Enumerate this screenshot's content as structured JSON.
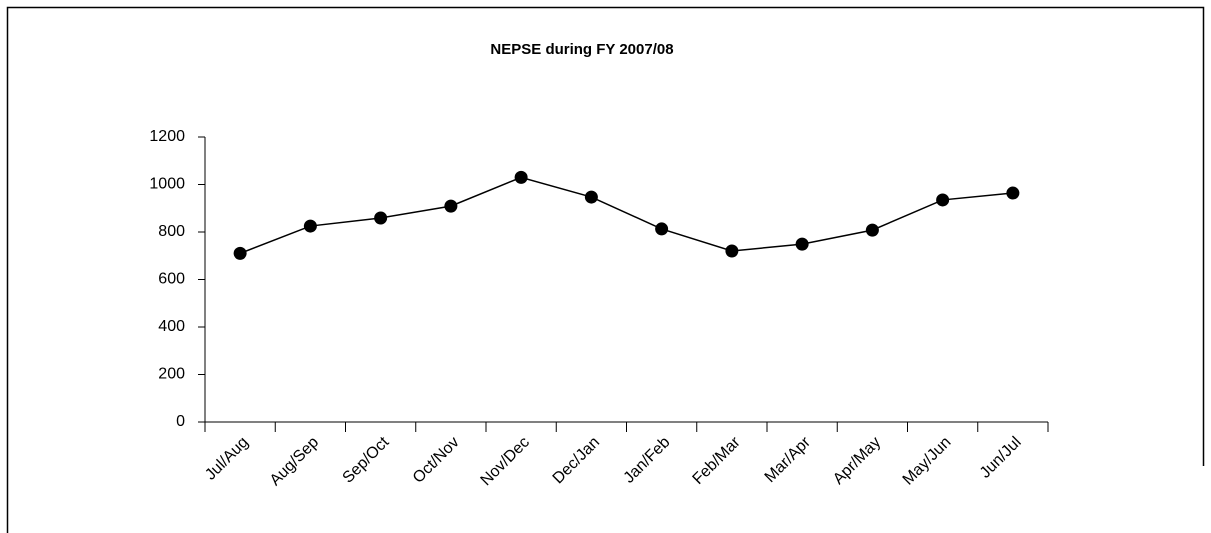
{
  "chart_data": {
    "type": "line",
    "title": "NEPSE during FY 2007/08",
    "categories": [
      "Jul/Aug",
      "Aug/Sep",
      "Sep/Oct",
      "Oct/Nov",
      "Nov/Dec",
      "Dec/Jan",
      "Jan/Feb",
      "Feb/Mar",
      "Mar/Apr",
      "Apr/May",
      "May/Jun",
      "Jun/Jul"
    ],
    "values": [
      710,
      825,
      859,
      909,
      1030,
      947,
      813,
      720,
      749,
      808,
      935,
      964
    ],
    "color": "#000000",
    "ylim": [
      0,
      1200
    ],
    "yticks": [
      0,
      200,
      400,
      600,
      800,
      1000,
      1200
    ],
    "grid": false
  }
}
